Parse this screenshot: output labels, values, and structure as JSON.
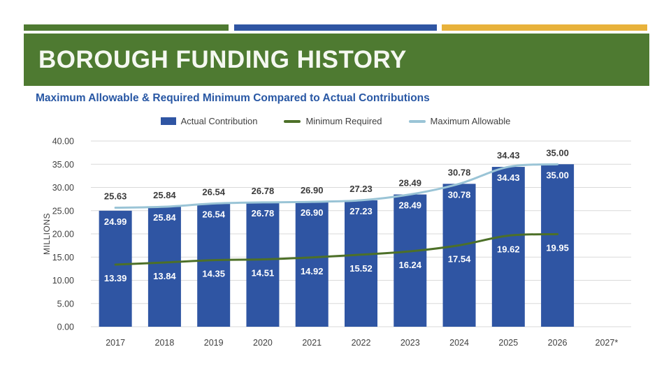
{
  "slide": {
    "title": "BOROUGH FUNDING HISTORY",
    "subtitle": "Maximum Allowable & Required Minimum Compared to Actual Contributions"
  },
  "accent_stripes": {
    "green": "#4E7A31",
    "blue": "#2F55A3",
    "gold": "#E8B23B"
  },
  "banner_color": "#4E7A31",
  "chart_data": {
    "type": "bar",
    "title": "",
    "categories": [
      "2017",
      "2018",
      "2019",
      "2020",
      "2021",
      "2022",
      "2023",
      "2024",
      "2025",
      "2026",
      "2027*"
    ],
    "series": [
      {
        "name": "Actual Contribution",
        "type": "bar",
        "color": "#2F55A3",
        "label_position": "inside_top",
        "label_color": "#FFFFFF",
        "values": [
          24.99,
          25.84,
          26.54,
          26.78,
          26.9,
          27.23,
          28.49,
          30.78,
          34.43,
          35.0,
          null
        ]
      },
      {
        "name": "Minimum Required",
        "type": "line",
        "color": "#4D7028",
        "label_position": "below_line",
        "label_color": "#FFFFFF",
        "values": [
          13.39,
          13.84,
          14.35,
          14.51,
          14.92,
          15.52,
          16.24,
          17.54,
          19.62,
          19.95,
          null
        ]
      },
      {
        "name": "Maximum Allowable",
        "type": "line",
        "color": "#9AC4D6",
        "label_position": "above_line",
        "label_color": "#3B3B3B",
        "values": [
          25.63,
          25.84,
          26.54,
          26.78,
          26.9,
          27.23,
          28.49,
          30.78,
          34.43,
          35.0,
          null
        ]
      }
    ],
    "xlabel": "",
    "ylabel": "MILLIONS",
    "ylim": [
      0,
      40
    ],
    "ytick_step": 5,
    "ytick_format_decimals": 2,
    "grid": true,
    "gridline_color": "#D9D9D9",
    "legend_position": "top"
  }
}
